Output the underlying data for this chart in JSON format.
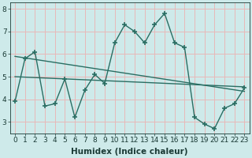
{
  "x": [
    0,
    1,
    2,
    3,
    4,
    5,
    6,
    7,
    8,
    9,
    10,
    11,
    12,
    13,
    14,
    15,
    16,
    17,
    18,
    19,
    20,
    21,
    22,
    23
  ],
  "y_data": [
    3.9,
    5.8,
    6.1,
    3.7,
    3.8,
    4.9,
    3.2,
    4.4,
    5.1,
    4.7,
    6.5,
    7.3,
    7.0,
    6.5,
    7.3,
    7.8,
    6.5,
    6.3,
    3.2,
    2.9,
    2.7,
    3.6,
    3.8,
    4.5
  ],
  "trend1_x": [
    0,
    23
  ],
  "trend1_y": [
    5.9,
    4.35
  ],
  "trend2_x": [
    0,
    23
  ],
  "trend2_y": [
    5.0,
    4.55
  ],
  "line_color": "#2a6e63",
  "bg_color": "#ceeaea",
  "grid_color": "#e8b8b8",
  "xlabel": "Humidex (Indice chaleur)",
  "ylim": [
    2.5,
    8.3
  ],
  "xlim": [
    -0.5,
    23.5
  ],
  "yticks": [
    3,
    4,
    5,
    6,
    7,
    8
  ],
  "xticks": [
    0,
    1,
    2,
    3,
    4,
    5,
    6,
    7,
    8,
    9,
    10,
    11,
    12,
    13,
    14,
    15,
    16,
    17,
    18,
    19,
    20,
    21,
    22,
    23
  ],
  "marker": "+",
  "markersize": 5,
  "linewidth": 1.0,
  "font_size": 6.5,
  "label_fontsize": 7.5
}
